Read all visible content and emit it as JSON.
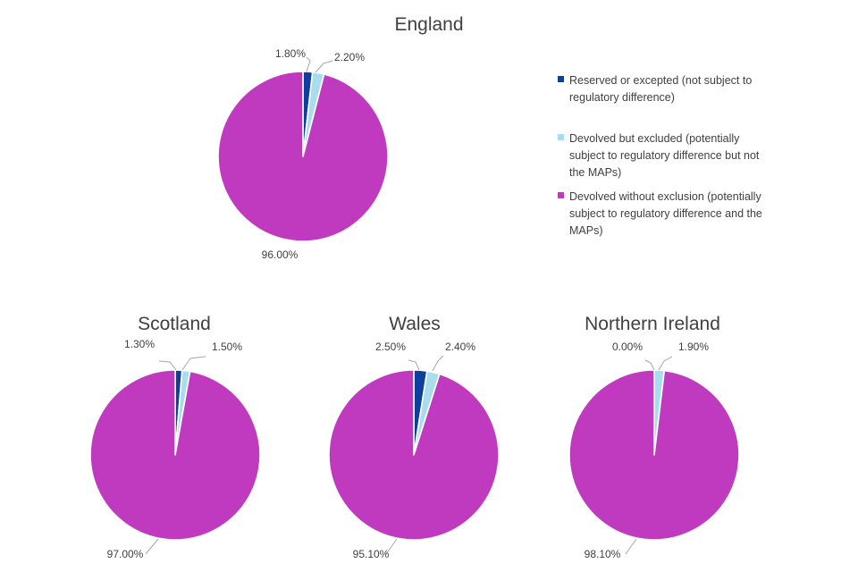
{
  "colors": {
    "reserved": "#0e3f9c",
    "devolved_excluded": "#a7ddec",
    "devolved_without_exclusion": "#c03abf",
    "text": "#404040",
    "leader": "#a6a6a6"
  },
  "legend": {
    "position": "right of England chart",
    "items": [
      {
        "color_key": "reserved",
        "lines": [
          "Reserved or excepted (not subject to",
          "regulatory difference)"
        ]
      },
      {
        "color_key": "devolved_excluded",
        "lines": [
          "Devolved but excluded (potentially",
          "subject to regulatory difference but not",
          "the MAPs)"
        ]
      },
      {
        "color_key": "devolved_without_exclusion",
        "lines": [
          "Devolved without exclusion (potentially",
          "subject to regulatory difference and the",
          "MAPs)"
        ]
      }
    ]
  },
  "chart_data": [
    {
      "type": "pie",
      "title": "England",
      "slices": [
        {
          "category": "Reserved or excepted (not subject to regulatory difference)",
          "value": 1.8,
          "label": "1.80%"
        },
        {
          "category": "Devolved but excluded (potentially subject to regulatory difference but not the MAPs)",
          "value": 2.2,
          "label": "2.20%"
        },
        {
          "category": "Devolved without exclusion (potentially subject to regulatory difference and the MAPs)",
          "value": 96.0,
          "label": "96.00%"
        }
      ]
    },
    {
      "type": "pie",
      "title": "Scotland",
      "slices": [
        {
          "category": "Reserved or excepted (not subject to regulatory difference)",
          "value": 1.3,
          "label": "1.30%"
        },
        {
          "category": "Devolved but excluded (potentially subject to regulatory difference but not the MAPs)",
          "value": 1.5,
          "label": "1.50%"
        },
        {
          "category": "Devolved without exclusion (potentially subject to regulatory difference and the MAPs)",
          "value": 97.0,
          "label": "97.00%"
        }
      ]
    },
    {
      "type": "pie",
      "title": "Wales",
      "slices": [
        {
          "category": "Reserved or excepted (not subject to regulatory difference)",
          "value": 2.5,
          "label": "2.50%"
        },
        {
          "category": "Devolved but excluded (potentially subject to regulatory difference but not the MAPs)",
          "value": 2.4,
          "label": "2.40%"
        },
        {
          "category": "Devolved without exclusion (potentially subject to regulatory difference and the MAPs)",
          "value": 95.1,
          "label": "95.10%"
        }
      ]
    },
    {
      "type": "pie",
      "title": "Northern Ireland",
      "slices": [
        {
          "category": "Reserved or excepted (not subject to regulatory difference)",
          "value": 0.0,
          "label": "0.00%"
        },
        {
          "category": "Devolved but excluded (potentially subject to regulatory difference but not the MAPs)",
          "value": 1.9,
          "label": "1.90%"
        },
        {
          "category": "Devolved without exclusion (potentially subject to regulatory difference and the MAPs)",
          "value": 98.1,
          "label": "98.10%"
        }
      ]
    }
  ]
}
